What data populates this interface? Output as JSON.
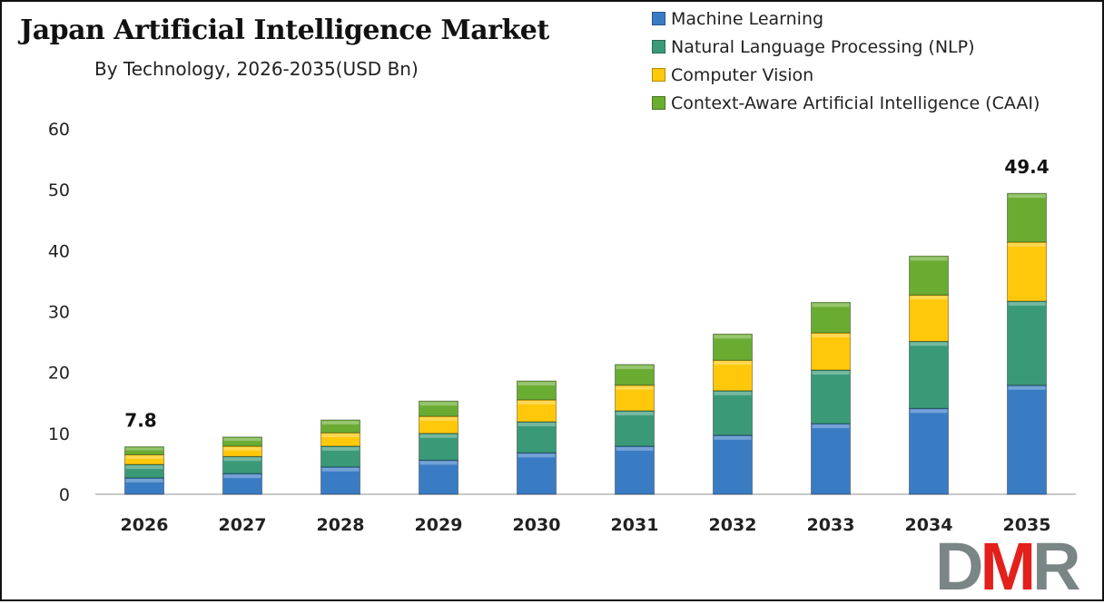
{
  "chart_data": {
    "type": "bar",
    "stacked": true,
    "title": "Japan Artificial Intelligence Market",
    "subtitle": "By Technology, 2026-2035(USD Bn)",
    "categories": [
      "2026",
      "2027",
      "2028",
      "2029",
      "2030",
      "2031",
      "2032",
      "2033",
      "2034",
      "2035"
    ],
    "series": [
      {
        "name": "Machine Learning",
        "color": "#3a7cc4",
        "values": [
          2.7,
          3.4,
          4.5,
          5.6,
          6.8,
          7.9,
          9.7,
          11.6,
          14.1,
          17.9
        ]
      },
      {
        "name": "Natural Language Processing (NLP)",
        "color": "#3a9a78",
        "values": [
          2.2,
          2.8,
          3.4,
          4.4,
          5.1,
          5.8,
          7.3,
          8.8,
          11.0,
          13.8
        ]
      },
      {
        "name": "Computer Vision",
        "color": "#ffc80a",
        "values": [
          1.6,
          1.7,
          2.2,
          2.8,
          3.6,
          4.2,
          5.0,
          6.1,
          7.6,
          9.7
        ]
      },
      {
        "name": "Context-Aware Artificial Intelligence (CAAI)",
        "color": "#6aac32",
        "values": [
          1.3,
          1.5,
          2.1,
          2.5,
          3.1,
          3.4,
          4.3,
          5.0,
          6.4,
          8.0
        ]
      }
    ],
    "data_labels": [
      {
        "category": "2026",
        "text": "7.8"
      },
      {
        "category": "2035",
        "text": "49.4"
      }
    ],
    "ylim": [
      0,
      60
    ],
    "yticks": [
      "0",
      "10",
      "20",
      "30",
      "40",
      "50",
      "60"
    ],
    "grid": false,
    "legend_position": "top-right",
    "xlabel": "",
    "ylabel": ""
  },
  "logo": {
    "text": "DMR",
    "colors": [
      "#7a8685",
      "#e3201b",
      "#7a8685"
    ]
  }
}
